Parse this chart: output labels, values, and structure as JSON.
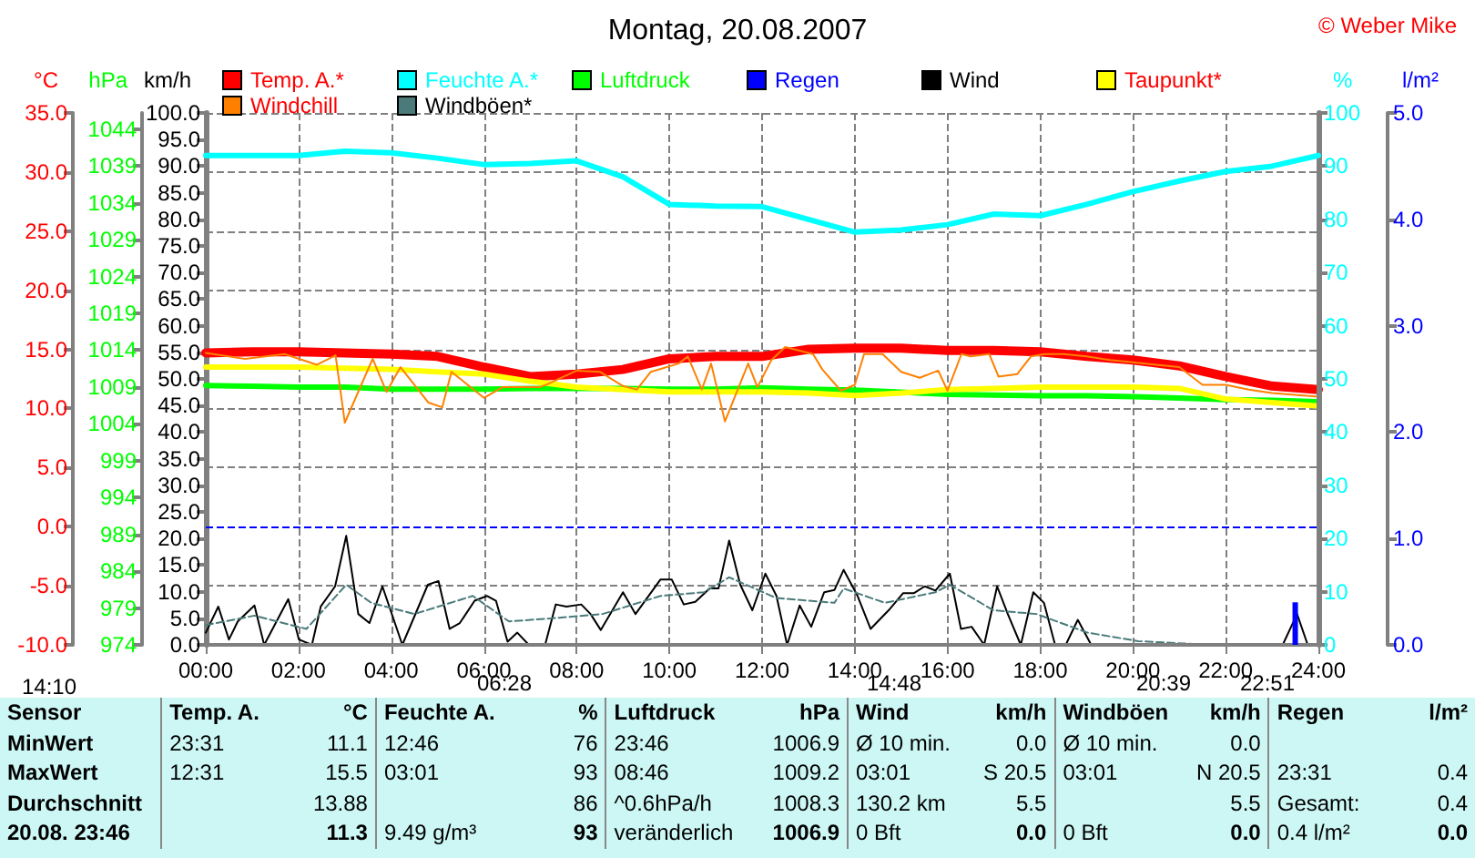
{
  "chart_data": [
    {
      "type": "line",
      "title": "Montag, 20.08.2007",
      "ylabel": "°C",
      "y2label": "hPa",
      "y3label": "km/h",
      "x": [
        0,
        1,
        2,
        3,
        4,
        5,
        6,
        7,
        8,
        9,
        10,
        11,
        12,
        13,
        14,
        15,
        16,
        17,
        18,
        19,
        20,
        21,
        22,
        23,
        24
      ],
      "xlim": [
        0,
        24
      ],
      "xticks": [
        {
          "value": 0,
          "label": "00:00"
        },
        {
          "value": 2,
          "label": "02:00"
        },
        {
          "value": 4,
          "label": "04:00"
        },
        {
          "value": 6,
          "label": "06:00"
        },
        {
          "value": 8,
          "label": "08:00"
        },
        {
          "value": 10,
          "label": "10:00"
        },
        {
          "value": 12,
          "label": "12:00"
        },
        {
          "value": 14,
          "label": "14:00"
        },
        {
          "value": 16,
          "label": "16:00"
        },
        {
          "value": 18,
          "label": "18:00"
        },
        {
          "value": 20,
          "label": "20:00"
        },
        {
          "value": 22,
          "label": "22:00"
        },
        {
          "value": 24,
          "label": "24:00"
        }
      ],
      "ylim": [
        -10,
        35
      ],
      "yticks": [
        {
          "value": -10,
          "label": "-10.0"
        },
        {
          "value": -5,
          "label": "-5.0"
        },
        {
          "value": 0,
          "label": "0.0"
        },
        {
          "value": 5,
          "label": "5.0"
        },
        {
          "value": 10,
          "label": "10.0"
        },
        {
          "value": 15,
          "label": "15.0"
        },
        {
          "value": 20,
          "label": "20.0"
        },
        {
          "value": 25,
          "label": "25.0"
        },
        {
          "value": 30,
          "label": "30.0"
        },
        {
          "value": 35,
          "label": "35.0"
        }
      ],
      "y2lim": [
        974,
        1046.2
      ],
      "y2ticks": [
        974,
        979,
        984,
        989,
        994,
        999,
        1004,
        1009,
        1014,
        1019,
        1024,
        1029,
        1034,
        1039,
        1044
      ],
      "y3lim": [
        0,
        100
      ],
      "y3ticks": [
        {
          "value": 0,
          "label": "0.0"
        },
        {
          "value": 5,
          "label": "5.0"
        },
        {
          "value": 10,
          "label": "10.0"
        },
        {
          "value": 15,
          "label": "15.0"
        },
        {
          "value": 20,
          "label": "20.0"
        },
        {
          "value": 25,
          "label": "25.0"
        },
        {
          "value": 30,
          "label": "30.0"
        },
        {
          "value": 35,
          "label": "35.0"
        },
        {
          "value": 40,
          "label": "40.0"
        },
        {
          "value": 45,
          "label": "45.0"
        },
        {
          "value": 50,
          "label": "50.0"
        },
        {
          "value": 55,
          "label": "55.0"
        },
        {
          "value": 60,
          "label": "60.0"
        },
        {
          "value": 65,
          "label": "65.0"
        },
        {
          "value": 70,
          "label": "70.0"
        },
        {
          "value": 75,
          "label": "75.0"
        },
        {
          "value": 80,
          "label": "80.0"
        },
        {
          "value": 85,
          "label": "85.0"
        },
        {
          "value": 90,
          "label": "90.0"
        },
        {
          "value": 95,
          "label": "95.0"
        },
        {
          "value": 100,
          "label": "100.0"
        }
      ],
      "grid": true,
      "legend": "top",
      "marker": "none",
      "ref_lines": [
        {
          "axis": "y",
          "value": 0,
          "color": "#0000ff",
          "line_style": "dashed"
        }
      ],
      "annotations": [
        "© Weber Mike",
        "14:10",
        "06:28",
        "14:48",
        "20:39",
        "22:51"
      ],
      "series": [
        {
          "name": "Temp. A.*",
          "color": "#ff0000",
          "values": [
            14.7,
            14.8,
            14.8,
            14.7,
            14.6,
            14.4,
            13.5,
            12.7,
            12.9,
            13.3,
            14.2,
            14.4,
            14.4,
            15.0,
            15.1,
            15.1,
            14.9,
            14.9,
            14.8,
            14.4,
            14.1,
            13.6,
            12.7,
            11.9,
            11.6
          ]
        },
        {
          "name": "Luftdruck",
          "color": "#00ff00",
          "axis": "y2",
          "values": [
            1009.2,
            1009.1,
            1009.0,
            1009.0,
            1008.7,
            1008.7,
            1008.7,
            1008.8,
            1008.8,
            1008.8,
            1008.7,
            1008.7,
            1008.9,
            1008.7,
            1008.6,
            1008.3,
            1008.0,
            1007.9,
            1007.8,
            1007.8,
            1007.7,
            1007.5,
            1007.3,
            1007.2,
            1007.0
          ]
        },
        {
          "name": "Wind",
          "color": "#000000",
          "axis": "y3",
          "x": [
            0,
            0.27,
            0.5,
            0.69,
            1.05,
            1.26,
            1.78,
            2.01,
            2.29,
            2.48,
            2.79,
            3.03,
            3.29,
            3.53,
            3.81,
            4.24,
            4.79,
            5.02,
            5.26,
            5.48,
            5.8,
            6.07,
            6.26,
            6.51,
            6.72,
            6.97,
            7.32,
            7.55,
            7.78,
            8.1,
            8.3,
            8.52,
            9.0,
            9.27,
            9.81,
            10.05,
            10.31,
            10.56,
            10.87,
            11.06,
            11.29,
            11.53,
            11.79,
            12.07,
            12.31,
            12.54,
            12.81,
            13.06,
            13.34,
            13.56,
            13.76,
            14.06,
            14.34,
            14.73,
            15.04,
            15.27,
            15.51,
            15.74,
            16.05,
            16.29,
            16.52,
            16.79,
            17.07,
            17.3,
            17.58,
            17.85,
            18.08,
            18.32,
            18.55,
            18.81,
            19.1,
            23.23,
            23.54,
            23.77
          ],
          "values": [
            2.3,
            7.2,
            1.0,
            4.4,
            7.4,
            0,
            8.6,
            1.0,
            0,
            7.2,
            11.0,
            20.5,
            5.8,
            4.1,
            11.0,
            0,
            11.3,
            12.0,
            3.0,
            4.1,
            8.3,
            9.2,
            8.3,
            0.6,
            2.3,
            0,
            0,
            7.6,
            7.2,
            7.6,
            5.8,
            2.8,
            9.9,
            5.8,
            12.3,
            12.3,
            7.6,
            8.1,
            10.6,
            10.6,
            19.6,
            11.3,
            6.5,
            13.4,
            9.2,
            0,
            7.4,
            3.4,
            9.9,
            10.3,
            14.1,
            9.2,
            3.0,
            6.5,
            9.7,
            9.7,
            11.0,
            10.2,
            13.4,
            3.0,
            3.4,
            0,
            11.0,
            5.8,
            0,
            9.9,
            7.9,
            0,
            0,
            4.7,
            0,
            0,
            5.8,
            0
          ]
        },
        {
          "name": "Taupunkt*",
          "color": "#ffff00",
          "values": [
            13.5,
            13.5,
            13.5,
            13.4,
            13.3,
            13.1,
            12.9,
            12.3,
            11.8,
            11.6,
            11.4,
            11.4,
            11.4,
            11.3,
            11.1,
            11.3,
            11.6,
            11.7,
            11.8,
            11.8,
            11.8,
            11.7,
            10.8,
            10.5,
            10.2
          ]
        },
        {
          "name": "Windchill",
          "color": "#ff8000",
          "x": [
            0,
            0.85,
            1.7,
            2.4,
            2.8,
            3.0,
            3.6,
            3.9,
            4.2,
            4.8,
            5.1,
            5.3,
            6.0,
            6.4,
            7.2,
            7.4,
            8.0,
            8.5,
            9.0,
            9.3,
            9.6,
            10.2,
            10.4,
            10.7,
            10.9,
            11.2,
            11.7,
            11.9,
            12.2,
            12.5,
            13.1,
            13.3,
            13.7,
            14.0,
            14.2,
            14.6,
            15.0,
            15.4,
            15.8,
            16.0,
            16.3,
            16.5,
            16.9,
            17.1,
            17.5,
            17.8,
            18.1,
            18.5,
            19.0,
            19.5,
            20.0,
            21.0,
            21.5,
            22.0,
            22.5,
            23.0,
            24
          ],
          "values": [
            14.7,
            14.2,
            14.6,
            13.7,
            14.5,
            8.8,
            14.2,
            11.4,
            13.5,
            10.5,
            10.1,
            13.1,
            10.9,
            11.8,
            11.8,
            12.1,
            13.2,
            13.1,
            11.9,
            11.6,
            13.1,
            13.8,
            14.4,
            11.6,
            13.8,
            8.9,
            13.8,
            11.8,
            14.1,
            15.2,
            14.6,
            13.3,
            11.5,
            12.0,
            14.6,
            14.6,
            13.1,
            12.6,
            13.2,
            11.5,
            14.6,
            14.4,
            14.6,
            12.7,
            12.9,
            14.4,
            14.6,
            14.6,
            14.4,
            14.1,
            13.9,
            13.5,
            12.0,
            12.0,
            11.6,
            11.3,
            11.0
          ]
        },
        {
          "name": "Windböen*",
          "color": "#4a7a7a",
          "axis": "y3",
          "line_style": "dashed",
          "x": [
            0,
            1.05,
            2.17,
            3.03,
            3.57,
            4.5,
            5.76,
            6.54,
            7.63,
            8.56,
            9.81,
            10.75,
            11.29,
            12.31,
            13.56,
            13.76,
            14.65,
            15.74,
            16.05,
            16.99,
            17.92,
            19.02,
            20.11,
            21.67,
            23.77
          ],
          "values": [
            3.7,
            5.5,
            3.0,
            11.3,
            7.9,
            5.8,
            9.2,
            4.4,
            5.1,
            5.8,
            9.2,
            9.9,
            12.7,
            8.8,
            7.9,
            10.6,
            7.9,
            9.9,
            11.3,
            6.5,
            5.8,
            2.3,
            0.7,
            0,
            0
          ]
        }
      ]
    },
    {
      "type": "line",
      "ylabel": "%",
      "y2label": "l/m²",
      "tick_labels": "y",
      "x": [
        0,
        1,
        2,
        3,
        4,
        5,
        6,
        7,
        8,
        9,
        10,
        11,
        12,
        13,
        14,
        15,
        16,
        17,
        18,
        19,
        20,
        21,
        22,
        23,
        24
      ],
      "xlim": [
        0,
        24
      ],
      "ylim": [
        0,
        100
      ],
      "yticks": [
        0,
        10,
        20,
        30,
        40,
        50,
        60,
        70,
        80,
        90,
        100
      ],
      "y2lim": [
        0,
        5
      ],
      "y2ticks": [
        {
          "value": 0,
          "label": "0.0"
        },
        {
          "value": 1,
          "label": "1.0"
        },
        {
          "value": 2,
          "label": "2.0"
        },
        {
          "value": 3,
          "label": "3.0"
        },
        {
          "value": 4,
          "label": "4.0"
        },
        {
          "value": 5,
          "label": "5.0"
        }
      ],
      "legend": "top",
      "marker": "none",
      "series": [
        {
          "name": "Feuchte A.*",
          "color": "#00ffff",
          "values": [
            92,
            92,
            92,
            92.8,
            92.5,
            91.5,
            90.3,
            90.5,
            91,
            88,
            82.8,
            82.5,
            82.4,
            80,
            77.6,
            78,
            79,
            81,
            80.7,
            82.8,
            85.2,
            87.2,
            89,
            90,
            92
          ]
        },
        {
          "name": "Regen",
          "color": "#0000ff",
          "type": "bar",
          "axis": "y2",
          "x": [
            23.5
          ],
          "values": [
            0.4
          ]
        }
      ]
    },
    {
      "type": "other",
      "annotations": [
        "Sensor\tTemp. A.\t°C\tFeuchte A.\t%\tLuftdruck\thPa\tWind\tkm/h\tWindböen\tkm/h\tRegen\tl/m²",
        "MinWert\t23:31\t11.1\t12:46\t76\t23:46\t1006.9\tØ 10 min.\t0.0\tØ 10 min.\t0.0\t\t",
        "MaxWert\t12:31\t15.5\t03:01\t93\t08:46\t1009.2\t03:01\tS 20.5\t03:01\tN 20.5\t23:31\t0.4",
        "Durchschnitt\t\t13.88\t\t86\t^0.6hPa/h\t1008.3\t130.2 km\t5.5\t\t5.5\tGesamt:\t0.4",
        "20.08. 23:46\t\t11.3\t9.49 g/m³\t93\tveränderlich\t1006.9\t0 Bft\t0.0\t0 Bft\t0.0\t0.4 l/m²\t0.0"
      ]
    }
  ]
}
